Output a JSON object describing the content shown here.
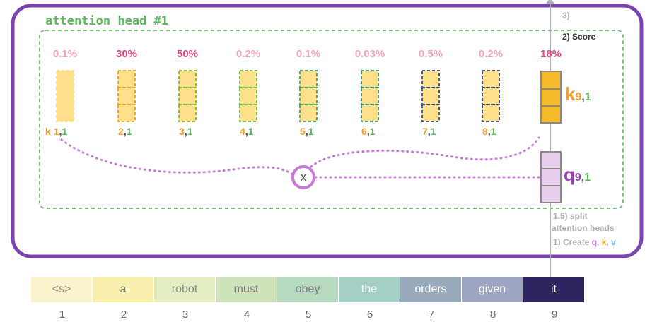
{
  "head_title": "attention head #1",
  "steps": {
    "step3": "3)",
    "score": "2) Score",
    "split_line1": "1.5) split",
    "split_line2": "attention heads",
    "create_prefix": "1) Create ",
    "create_q": "q",
    "create_sep1": ", ",
    "create_k": "k",
    "create_sep2": ", ",
    "create_v": "v"
  },
  "scores": [
    {
      "value": "0.1%",
      "color": "#f4a4c0"
    },
    {
      "value": "30%",
      "color": "#e8457a"
    },
    {
      "value": "50%",
      "color": "#e8457a"
    },
    {
      "value": "0.2%",
      "color": "#f4a4c0"
    },
    {
      "value": "0.1%",
      "color": "#f4a4c0"
    },
    {
      "value": "0.03%",
      "color": "#f4a4c0"
    },
    {
      "value": "0.5%",
      "color": "#f4a4c0"
    },
    {
      "value": "0.2%",
      "color": "#f4a4c0"
    },
    {
      "value": "18%",
      "color": "#e8457a"
    }
  ],
  "key_labels": [
    {
      "prefix": "k ",
      "num": "1",
      "comma": ",",
      "head": "1"
    },
    {
      "prefix": "",
      "num": "2",
      "comma": ",",
      "head": "1"
    },
    {
      "prefix": "",
      "num": "3",
      "comma": ",",
      "head": "1"
    },
    {
      "prefix": "",
      "num": "4",
      "comma": ",",
      "head": "1"
    },
    {
      "prefix": "",
      "num": "5",
      "comma": ",",
      "head": "1"
    },
    {
      "prefix": "",
      "num": "6",
      "comma": ",",
      "head": "1"
    },
    {
      "prefix": "",
      "num": "7",
      "comma": ",",
      "head": "1"
    },
    {
      "prefix": "",
      "num": "8",
      "comma": ",",
      "head": "1"
    }
  ],
  "key_big": {
    "letter": "k",
    "sub_num": "9",
    "sub_comma": ",",
    "sub_head": "1"
  },
  "query_big": {
    "letter": "q",
    "sub_num": "9",
    "sub_comma": ",",
    "sub_head": "1"
  },
  "multiply_symbol": "x",
  "tokens": [
    {
      "text": "<s>",
      "num": "1",
      "bg": "#fbf3cc",
      "fg": "#888888"
    },
    {
      "text": "a",
      "num": "2",
      "bg": "#fbefb0",
      "fg": "#777777"
    },
    {
      "text": "robot",
      "num": "3",
      "bg": "#e3eec0",
      "fg": "#888888"
    },
    {
      "text": "must",
      "num": "4",
      "bg": "#cfe3b9",
      "fg": "#777777"
    },
    {
      "text": "obey",
      "num": "5",
      "bg": "#b7d9bf",
      "fg": "#777777"
    },
    {
      "text": "the",
      "num": "6",
      "bg": "#a4cfc7",
      "fg": "#ffffff"
    },
    {
      "text": "orders",
      "num": "7",
      "bg": "#98aabc",
      "fg": "#ffffff"
    },
    {
      "text": "given",
      "num": "8",
      "bg": "#9ea5c3",
      "fg": "#ffffff"
    },
    {
      "text": "it",
      "num": "9",
      "bg": "#2e2560",
      "fg": "#ffffff"
    }
  ],
  "colors": {
    "frame": "#7a44b0",
    "dashed_box": "#72c27a",
    "key_fill": "#ffe08a",
    "key_current_fill": "#f6bb2a",
    "query_fill": "#e9cdee",
    "dotted_line": "#c57ad8",
    "orange": "#f0a030",
    "green": "#5cb85c",
    "purple": "#9b3fb5"
  },
  "key_dash_colors": [
    "#ffe08a",
    "#f0a030",
    "#8db83a",
    "#6cbf4a",
    "#4aa86a",
    "#3f9a8a",
    "#3f5a8a",
    "#3f4e88"
  ]
}
